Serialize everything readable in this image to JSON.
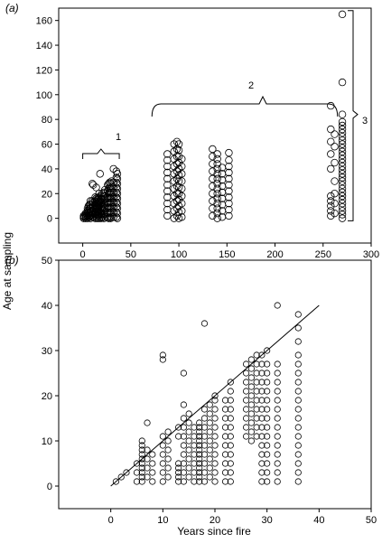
{
  "figure": {
    "ylabel": "Age at sampling",
    "xlabel": "Years since fire"
  },
  "chart_data": [
    {
      "type": "scatter",
      "panel_label": "(a)",
      "xlabel": "",
      "ylabel": "",
      "xlim": [
        -25,
        300
      ],
      "ylim": [
        -20,
        170
      ],
      "xticks": [
        "0",
        "50",
        "100",
        "150",
        "200",
        "250",
        "300"
      ],
      "yticks": [
        "0",
        "20",
        "40",
        "60",
        "80",
        "100",
        "120",
        "140",
        "160"
      ],
      "grid": false,
      "brackets": [
        {
          "label": "1",
          "x_from": 0,
          "x_to": 38
        },
        {
          "label": "2",
          "x_from": 72,
          "x_to": 265
        },
        {
          "label": "3",
          "y_from": -2,
          "y_to": 168
        }
      ],
      "columns": [
        {
          "x": 1,
          "y": [
            0,
            1,
            2
          ]
        },
        {
          "x": 3,
          "y": [
            0,
            1,
            2,
            3,
            4
          ]
        },
        {
          "x": 5,
          "y": [
            0,
            2,
            4,
            6,
            8
          ]
        },
        {
          "x": 6,
          "y": [
            1,
            3,
            5,
            7,
            10
          ]
        },
        {
          "x": 7,
          "y": [
            1,
            2,
            4,
            6,
            8,
            11
          ]
        },
        {
          "x": 8,
          "y": [
            0,
            2,
            5,
            8,
            11,
            14
          ]
        },
        {
          "x": 10,
          "y": [
            1,
            3,
            5,
            8,
            11,
            14,
            28
          ]
        },
        {
          "x": 11,
          "y": [
            1,
            4,
            7,
            10,
            13,
            27
          ]
        },
        {
          "x": 13,
          "y": [
            0,
            3,
            5,
            8,
            11,
            14,
            17
          ]
        },
        {
          "x": 14,
          "y": [
            1,
            4,
            7,
            10,
            13,
            16,
            25
          ]
        },
        {
          "x": 15,
          "y": [
            0,
            3,
            6,
            9,
            12,
            15
          ]
        },
        {
          "x": 16,
          "y": [
            2,
            5,
            8,
            11,
            14,
            17
          ]
        },
        {
          "x": 17,
          "y": [
            0,
            3,
            6,
            10,
            13,
            16,
            20
          ]
        },
        {
          "x": 18,
          "y": [
            1,
            4,
            7,
            11,
            14,
            36
          ]
        },
        {
          "x": 19,
          "y": [
            0,
            3,
            6,
            9,
            12,
            15,
            18
          ]
        },
        {
          "x": 20,
          "y": [
            1,
            4,
            7,
            10,
            13,
            16,
            20
          ]
        },
        {
          "x": 22,
          "y": [
            0,
            3,
            6,
            9,
            12,
            15,
            18,
            21
          ]
        },
        {
          "x": 23,
          "y": [
            1,
            4,
            8,
            12,
            16,
            20,
            23
          ]
        },
        {
          "x": 26,
          "y": [
            1,
            5,
            9,
            13,
            17,
            22,
            27
          ]
        },
        {
          "x": 27,
          "y": [
            0,
            4,
            8,
            12,
            16,
            20,
            24,
            28
          ]
        },
        {
          "x": 28,
          "y": [
            1,
            5,
            9,
            13,
            17,
            21,
            25,
            29
          ]
        },
        {
          "x": 29,
          "y": [
            0,
            4,
            8,
            12,
            16,
            20,
            24,
            28
          ]
        },
        {
          "x": 30,
          "y": [
            1,
            5,
            9,
            13,
            17,
            21,
            25,
            30
          ]
        },
        {
          "x": 32,
          "y": [
            1,
            5,
            9,
            13,
            17,
            21,
            25,
            29,
            40
          ]
        },
        {
          "x": 35,
          "y": [
            1,
            5,
            9,
            13,
            17,
            21,
            25,
            29,
            33,
            38
          ]
        },
        {
          "x": 36,
          "y": [
            0,
            4,
            8,
            12,
            16,
            20,
            24,
            28,
            32,
            36
          ]
        },
        {
          "x": 88,
          "y": [
            2,
            7,
            12,
            17,
            22,
            27,
            32,
            37,
            42,
            47,
            52
          ]
        },
        {
          "x": 95,
          "y": [
            0,
            6,
            12,
            18,
            24,
            30,
            36,
            42,
            48,
            54,
            60
          ]
        },
        {
          "x": 98,
          "y": [
            2,
            8,
            14,
            20,
            26,
            32,
            38,
            44,
            50,
            56,
            62
          ]
        },
        {
          "x": 100,
          "y": [
            0,
            5,
            10,
            15,
            20,
            25,
            30,
            35,
            40,
            45,
            50,
            55,
            60
          ]
        },
        {
          "x": 103,
          "y": [
            1,
            6,
            12,
            18,
            24,
            30,
            36,
            42,
            48
          ]
        },
        {
          "x": 135,
          "y": [
            2,
            8,
            14,
            20,
            26,
            32,
            38,
            44,
            50,
            56
          ]
        },
        {
          "x": 140,
          "y": [
            0,
            4,
            8,
            12,
            16,
            20,
            24,
            28,
            32,
            36,
            40,
            44,
            48,
            52
          ]
        },
        {
          "x": 145,
          "y": [
            1,
            6,
            11,
            16,
            21,
            26,
            31,
            36,
            41
          ]
        },
        {
          "x": 152,
          "y": [
            2,
            7,
            12,
            17,
            22,
            27,
            32,
            37,
            42,
            47,
            53
          ]
        },
        {
          "x": 258,
          "y": [
            2,
            6,
            10,
            14,
            18,
            40,
            52,
            62,
            72,
            91
          ]
        },
        {
          "x": 262,
          "y": [
            4,
            12,
            20,
            30,
            45,
            58,
            68
          ]
        },
        {
          "x": 270,
          "y": [
            0,
            3,
            6,
            9,
            12,
            15,
            18,
            21,
            24,
            27,
            30,
            33,
            36,
            39,
            42,
            45,
            48,
            51,
            54,
            57,
            60,
            63,
            66,
            69,
            72,
            75,
            78,
            84,
            110,
            165
          ]
        }
      ]
    },
    {
      "type": "scatter",
      "panel_label": "(b)",
      "xlabel": "",
      "ylabel": "",
      "xlim": [
        -10,
        50
      ],
      "ylim": [
        -5,
        50
      ],
      "xticks": [
        "0",
        "10",
        "20",
        "30",
        "40",
        "50"
      ],
      "yticks": [
        "0",
        "10",
        "20",
        "30",
        "40",
        "50"
      ],
      "grid": false,
      "fit_line": {
        "x": [
          0,
          40
        ],
        "y": [
          0,
          40
        ]
      },
      "columns": [
        {
          "x": 1,
          "y": [
            1
          ]
        },
        {
          "x": 2,
          "y": [
            2
          ]
        },
        {
          "x": 3,
          "y": [
            3
          ]
        },
        {
          "x": 5,
          "y": [
            1,
            3,
            5
          ]
        },
        {
          "x": 6,
          "y": [
            1,
            2,
            3,
            4,
            5,
            6,
            7,
            8,
            9,
            10
          ]
        },
        {
          "x": 7,
          "y": [
            2,
            4,
            6,
            8,
            14
          ]
        },
        {
          "x": 8,
          "y": [
            1,
            3,
            5,
            7
          ]
        },
        {
          "x": 10,
          "y": [
            1,
            3,
            5,
            7,
            9,
            11,
            28,
            29
          ]
        },
        {
          "x": 11,
          "y": [
            2,
            4,
            6,
            8,
            10,
            12
          ]
        },
        {
          "x": 13,
          "y": [
            1,
            2,
            3,
            4,
            5,
            11,
            13
          ]
        },
        {
          "x": 14,
          "y": [
            1,
            3,
            5,
            7,
            9,
            11,
            13,
            15,
            18,
            25
          ]
        },
        {
          "x": 15,
          "y": [
            2,
            4,
            6,
            8,
            10,
            12,
            14,
            16
          ]
        },
        {
          "x": 16,
          "y": [
            1,
            3,
            5,
            7,
            9,
            11,
            13
          ]
        },
        {
          "x": 17,
          "y": [
            1,
            2,
            3,
            4,
            5,
            6,
            7,
            8,
            9,
            10,
            11,
            12,
            13,
            14
          ]
        },
        {
          "x": 18,
          "y": [
            1,
            3,
            5,
            7,
            9,
            11,
            13,
            15,
            17,
            36
          ]
        },
        {
          "x": 19,
          "y": [
            2,
            4,
            6,
            8,
            10,
            12,
            14,
            16,
            18
          ]
        },
        {
          "x": 20,
          "y": [
            1,
            3,
            5,
            7,
            9,
            11,
            13,
            15,
            17,
            19,
            20
          ]
        },
        {
          "x": 22,
          "y": [
            1,
            3,
            5,
            7,
            9,
            11,
            13,
            15,
            17,
            19
          ]
        },
        {
          "x": 23,
          "y": [
            1,
            3,
            5,
            7,
            9,
            11,
            13,
            15,
            17,
            19,
            21,
            23
          ]
        },
        {
          "x": 26,
          "y": [
            11,
            13,
            15,
            17,
            19,
            21,
            23,
            25,
            27
          ]
        },
        {
          "x": 27,
          "y": [
            10,
            12,
            14,
            16,
            18,
            20,
            22,
            24,
            26,
            28
          ]
        },
        {
          "x": 28,
          "y": [
            11,
            13,
            15,
            17,
            19,
            21,
            23,
            25,
            27,
            29
          ]
        },
        {
          "x": 29,
          "y": [
            1,
            3,
            5,
            7,
            9,
            11,
            13,
            15,
            17,
            19,
            21,
            23,
            25,
            27,
            29
          ]
        },
        {
          "x": 30,
          "y": [
            1,
            3,
            5,
            7,
            9,
            11,
            13,
            15,
            17,
            19,
            21,
            23,
            25,
            27,
            30
          ]
        },
        {
          "x": 32,
          "y": [
            1,
            3,
            5,
            7,
            9,
            11,
            13,
            15,
            17,
            19,
            21,
            23,
            25,
            27,
            40
          ]
        },
        {
          "x": 36,
          "y": [
            1,
            3,
            5,
            7,
            9,
            11,
            13,
            15,
            17,
            19,
            21,
            23,
            25,
            27,
            29,
            32,
            35,
            38
          ]
        }
      ]
    }
  ]
}
